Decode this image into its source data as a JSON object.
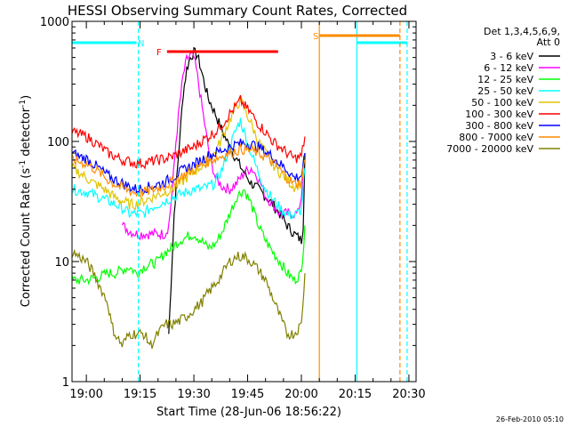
{
  "chart_data": {
    "type": "line",
    "title": "HESSI Observing Summary Count Rates, Corrected",
    "xlabel": "Start Time (28-Jun-06 18:56:22)",
    "ylabel_main": "Corrected Count Rate (s",
    "ylabel_sup1": "-1",
    "ylabel_mid": " detector",
    "ylabel_sup2": "-1",
    "ylabel_end": ")",
    "y_scale": "log",
    "ylim": [
      1,
      1000
    ],
    "xlim": [
      0,
      96
    ],
    "x_ticks": [
      {
        "t": 4,
        "label": "19:00"
      },
      {
        "t": 19,
        "label": "19:15"
      },
      {
        "t": 34,
        "label": "19:30"
      },
      {
        "t": 49,
        "label": "19:45"
      },
      {
        "t": 64,
        "label": "20:00"
      },
      {
        "t": 79,
        "label": "20:15"
      },
      {
        "t": 94,
        "label": "20:30"
      }
    ],
    "y_ticks": [
      {
        "v": 1,
        "label": "1"
      },
      {
        "v": 10,
        "label": "10"
      },
      {
        "v": 100,
        "label": "100"
      },
      {
        "v": 1000,
        "label": "1000"
      }
    ],
    "legend_title_1": "Det 1,3,4,5,6,9,",
    "legend_title_2": "Att 0",
    "footer": "26-Feb-2010 05:10",
    "series": [
      {
        "name": "3 - 6 keV",
        "color": "#000000",
        "points": [
          [
            27,
            2.5
          ],
          [
            28.5,
            25
          ],
          [
            30,
            100
          ],
          [
            31,
            250
          ],
          [
            32,
            400
          ],
          [
            33,
            500
          ],
          [
            34,
            550
          ],
          [
            35,
            520
          ],
          [
            36,
            400
          ],
          [
            37,
            300
          ],
          [
            38,
            230
          ],
          [
            40,
            170
          ],
          [
            42,
            120
          ],
          [
            44,
            90
          ],
          [
            46,
            70
          ],
          [
            48,
            55
          ],
          [
            50,
            45
          ],
          [
            52,
            40
          ],
          [
            54,
            35
          ],
          [
            56,
            30
          ],
          [
            58,
            25
          ],
          [
            60,
            20
          ],
          [
            62,
            17
          ],
          [
            64,
            15
          ],
          [
            64.5,
            20
          ],
          [
            65,
            80
          ]
        ]
      },
      {
        "name": "6 - 12 keV",
        "color": "#ff00ff",
        "points": [
          [
            14,
            20
          ],
          [
            16,
            18
          ],
          [
            18,
            17
          ],
          [
            20,
            17
          ],
          [
            22,
            17
          ],
          [
            24,
            17
          ],
          [
            26,
            17
          ],
          [
            27,
            20
          ],
          [
            28,
            40
          ],
          [
            29,
            100
          ],
          [
            30,
            200
          ],
          [
            31,
            350
          ],
          [
            32,
            480
          ],
          [
            33,
            520
          ],
          [
            34,
            500
          ],
          [
            35,
            350
          ],
          [
            36,
            220
          ],
          [
            37,
            140
          ],
          [
            38,
            90
          ],
          [
            39,
            65
          ],
          [
            40,
            50
          ],
          [
            42,
            42
          ],
          [
            44,
            40
          ],
          [
            46,
            45
          ],
          [
            48,
            55
          ],
          [
            50,
            60
          ],
          [
            52,
            50
          ],
          [
            54,
            35
          ],
          [
            56,
            30
          ],
          [
            58,
            25
          ],
          [
            60,
            25
          ],
          [
            62,
            25
          ],
          [
            63,
            25
          ],
          [
            64,
            35
          ],
          [
            64.5,
            60
          ]
        ]
      },
      {
        "name": "12 - 25 keV",
        "color": "#00ff00",
        "points": [
          [
            0,
            7
          ],
          [
            4,
            7
          ],
          [
            8,
            7.5
          ],
          [
            10,
            8
          ],
          [
            12,
            8
          ],
          [
            14,
            8.5
          ],
          [
            16,
            9
          ],
          [
            18,
            8
          ],
          [
            20,
            9
          ],
          [
            22,
            9.5
          ],
          [
            24,
            10
          ],
          [
            26,
            12
          ],
          [
            28,
            13
          ],
          [
            30,
            15
          ],
          [
            32,
            16
          ],
          [
            34,
            17
          ],
          [
            36,
            15
          ],
          [
            38,
            13
          ],
          [
            40,
            14
          ],
          [
            42,
            18
          ],
          [
            44,
            25
          ],
          [
            46,
            35
          ],
          [
            48,
            40
          ],
          [
            50,
            30
          ],
          [
            52,
            20
          ],
          [
            54,
            15
          ],
          [
            56,
            12
          ],
          [
            58,
            10
          ],
          [
            60,
            8
          ],
          [
            62,
            7
          ],
          [
            64,
            8
          ],
          [
            65,
            20
          ]
        ]
      },
      {
        "name": "25 - 50 keV",
        "color": "#00ffff",
        "points": [
          [
            0,
            40
          ],
          [
            4,
            38
          ],
          [
            8,
            34
          ],
          [
            10,
            32
          ],
          [
            12,
            30
          ],
          [
            14,
            28
          ],
          [
            16,
            25
          ],
          [
            18,
            25
          ],
          [
            20,
            25
          ],
          [
            22,
            28
          ],
          [
            24,
            30
          ],
          [
            26,
            32
          ],
          [
            28,
            34
          ],
          [
            30,
            36
          ],
          [
            32,
            38
          ],
          [
            34,
            40
          ],
          [
            36,
            40
          ],
          [
            38,
            42
          ],
          [
            40,
            45
          ],
          [
            42,
            60
          ],
          [
            44,
            90
          ],
          [
            46,
            130
          ],
          [
            47,
            150
          ],
          [
            48,
            120
          ],
          [
            50,
            80
          ],
          [
            52,
            55
          ],
          [
            54,
            40
          ],
          [
            56,
            33
          ],
          [
            58,
            28
          ],
          [
            60,
            25
          ],
          [
            62,
            24
          ],
          [
            64,
            27
          ],
          [
            65,
            60
          ]
        ]
      },
      {
        "name": "50 - 100 keV",
        "color": "#e0c400",
        "points": [
          [
            0,
            60
          ],
          [
            2,
            55
          ],
          [
            4,
            50
          ],
          [
            6,
            45
          ],
          [
            8,
            42
          ],
          [
            10,
            38
          ],
          [
            12,
            34
          ],
          [
            14,
            32
          ],
          [
            16,
            30
          ],
          [
            18,
            30
          ],
          [
            20,
            32
          ],
          [
            22,
            34
          ],
          [
            24,
            36
          ],
          [
            26,
            38
          ],
          [
            28,
            40
          ],
          [
            30,
            44
          ],
          [
            32,
            50
          ],
          [
            34,
            56
          ],
          [
            36,
            62
          ],
          [
            38,
            70
          ],
          [
            40,
            80
          ],
          [
            42,
            110
          ],
          [
            44,
            150
          ],
          [
            46,
            200
          ],
          [
            47,
            220
          ],
          [
            48,
            190
          ],
          [
            50,
            140
          ],
          [
            52,
            100
          ],
          [
            54,
            80
          ],
          [
            56,
            65
          ],
          [
            58,
            55
          ],
          [
            60,
            48
          ],
          [
            62,
            42
          ],
          [
            64,
            45
          ],
          [
            65,
            80
          ]
        ]
      },
      {
        "name": "100 - 300 keV",
        "color": "#ff0000",
        "points": [
          [
            0,
            120
          ],
          [
            2,
            115
          ],
          [
            4,
            110
          ],
          [
            6,
            100
          ],
          [
            8,
            90
          ],
          [
            10,
            80
          ],
          [
            12,
            75
          ],
          [
            14,
            70
          ],
          [
            16,
            68
          ],
          [
            18,
            66
          ],
          [
            20,
            66
          ],
          [
            22,
            68
          ],
          [
            24,
            70
          ],
          [
            26,
            72
          ],
          [
            28,
            75
          ],
          [
            30,
            80
          ],
          [
            32,
            85
          ],
          [
            34,
            90
          ],
          [
            36,
            100
          ],
          [
            38,
            110
          ],
          [
            40,
            120
          ],
          [
            42,
            140
          ],
          [
            44,
            170
          ],
          [
            46,
            200
          ],
          [
            47,
            220
          ],
          [
            48,
            200
          ],
          [
            50,
            170
          ],
          [
            52,
            140
          ],
          [
            54,
            120
          ],
          [
            56,
            100
          ],
          [
            58,
            90
          ],
          [
            60,
            80
          ],
          [
            62,
            72
          ],
          [
            64,
            75
          ],
          [
            65,
            110
          ]
        ]
      },
      {
        "name": "300 - 800 keV",
        "color": "#0000ff",
        "points": [
          [
            0,
            80
          ],
          [
            2,
            75
          ],
          [
            4,
            72
          ],
          [
            6,
            65
          ],
          [
            8,
            58
          ],
          [
            10,
            52
          ],
          [
            12,
            48
          ],
          [
            14,
            45
          ],
          [
            16,
            42
          ],
          [
            18,
            40
          ],
          [
            20,
            41
          ],
          [
            22,
            42
          ],
          [
            24,
            44
          ],
          [
            26,
            46
          ],
          [
            28,
            50
          ],
          [
            30,
            55
          ],
          [
            32,
            60
          ],
          [
            34,
            64
          ],
          [
            36,
            70
          ],
          [
            38,
            76
          ],
          [
            40,
            80
          ],
          [
            42,
            85
          ],
          [
            44,
            90
          ],
          [
            46,
            95
          ],
          [
            48,
            97
          ],
          [
            50,
            95
          ],
          [
            52,
            90
          ],
          [
            54,
            82
          ],
          [
            56,
            75
          ],
          [
            58,
            65
          ],
          [
            60,
            58
          ],
          [
            62,
            50
          ],
          [
            64,
            52
          ],
          [
            65,
            80
          ]
        ]
      },
      {
        "name": "800 - 7000 keV",
        "color": "#ff8c00",
        "points": [
          [
            0,
            70
          ],
          [
            2,
            68
          ],
          [
            4,
            65
          ],
          [
            6,
            60
          ],
          [
            8,
            54
          ],
          [
            10,
            48
          ],
          [
            12,
            44
          ],
          [
            14,
            41
          ],
          [
            16,
            39
          ],
          [
            18,
            37
          ],
          [
            20,
            38
          ],
          [
            22,
            39
          ],
          [
            24,
            41
          ],
          [
            26,
            43
          ],
          [
            28,
            46
          ],
          [
            30,
            50
          ],
          [
            32,
            54
          ],
          [
            34,
            58
          ],
          [
            36,
            63
          ],
          [
            38,
            68
          ],
          [
            40,
            72
          ],
          [
            42,
            76
          ],
          [
            44,
            80
          ],
          [
            46,
            84
          ],
          [
            48,
            86
          ],
          [
            50,
            84
          ],
          [
            52,
            80
          ],
          [
            54,
            74
          ],
          [
            56,
            66
          ],
          [
            58,
            58
          ],
          [
            60,
            50
          ],
          [
            62,
            44
          ],
          [
            64,
            46
          ],
          [
            65,
            70
          ]
        ]
      },
      {
        "name": "7000 - 20000 keV",
        "color": "#808000",
        "points": [
          [
            0,
            12
          ],
          [
            2,
            11
          ],
          [
            4,
            10
          ],
          [
            6,
            8
          ],
          [
            8,
            6
          ],
          [
            10,
            4.5
          ],
          [
            11,
            3
          ],
          [
            12,
            2.5
          ],
          [
            14,
            2
          ],
          [
            16,
            2.5
          ],
          [
            18,
            2.5
          ],
          [
            20,
            2.5
          ],
          [
            22,
            2
          ],
          [
            24,
            2.5
          ],
          [
            26,
            3
          ],
          [
            28,
            3
          ],
          [
            30,
            3.2
          ],
          [
            32,
            3.5
          ],
          [
            34,
            4
          ],
          [
            36,
            4.5
          ],
          [
            38,
            5.5
          ],
          [
            40,
            6.5
          ],
          [
            42,
            8
          ],
          [
            44,
            10
          ],
          [
            46,
            11
          ],
          [
            48,
            11
          ],
          [
            50,
            10
          ],
          [
            52,
            8.5
          ],
          [
            54,
            7
          ],
          [
            56,
            5
          ],
          [
            58,
            3.5
          ],
          [
            60,
            2.5
          ],
          [
            62,
            2.5
          ],
          [
            64,
            3
          ],
          [
            65,
            8
          ]
        ]
      }
    ],
    "flags": [
      {
        "name": "N",
        "color": "#00ffff",
        "label": "N",
        "segments": [
          [
            [
              0,
              18
            ]
          ],
          [
            [
              79.5,
              93.5
            ]
          ]
        ],
        "boundaries": [
          18.5,
          79.5,
          93.5
        ]
      },
      {
        "name": "F",
        "color": "#ff0000",
        "label": "F",
        "segments": [
          [
            [
              26.5,
              57.5
            ]
          ]
        ]
      },
      {
        "name": "S",
        "color": "#ff8c00",
        "label": "S",
        "segments": [
          [
            [
              69,
              91.5
            ]
          ]
        ],
        "boundaries": [
          69,
          91.5
        ]
      }
    ]
  }
}
